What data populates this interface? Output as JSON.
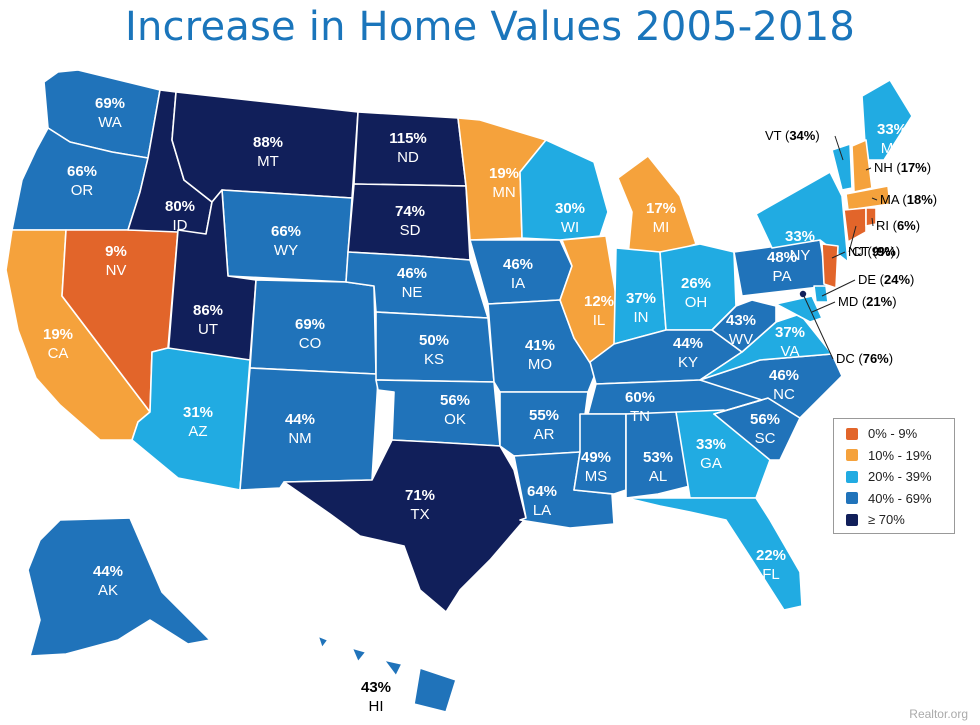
{
  "title": "Increase in Home Values 2005-2018",
  "credit": "Realtor.org",
  "colors": {
    "tier1": "#e2652a",
    "tier2": "#f5a23c",
    "tier3": "#21abe2",
    "tier4": "#2073ba",
    "tier5": "#111f5a",
    "border": "#ffffff"
  },
  "legend": [
    {
      "label": "0% - 9%",
      "tier": "tier1"
    },
    {
      "label": "10% - 19%",
      "tier": "tier2"
    },
    {
      "label": "20% - 39%",
      "tier": "tier3"
    },
    {
      "label": "40% - 69%",
      "tier": "tier4"
    },
    {
      "label": "≥ 70%",
      "tier": "tier5"
    }
  ],
  "states": [
    {
      "abbr": "WA",
      "value": "69%",
      "tier": "tier4"
    },
    {
      "abbr": "OR",
      "value": "66%",
      "tier": "tier4"
    },
    {
      "abbr": "CA",
      "value": "19%",
      "tier": "tier2"
    },
    {
      "abbr": "NV",
      "value": "9%",
      "tier": "tier1"
    },
    {
      "abbr": "ID",
      "value": "80%",
      "tier": "tier5"
    },
    {
      "abbr": "MT",
      "value": "88%",
      "tier": "tier5"
    },
    {
      "abbr": "WY",
      "value": "66%",
      "tier": "tier4"
    },
    {
      "abbr": "UT",
      "value": "86%",
      "tier": "tier5"
    },
    {
      "abbr": "AZ",
      "value": "31%",
      "tier": "tier3"
    },
    {
      "abbr": "CO",
      "value": "69%",
      "tier": "tier4"
    },
    {
      "abbr": "NM",
      "value": "44%",
      "tier": "tier4"
    },
    {
      "abbr": "ND",
      "value": "115%",
      "tier": "tier5"
    },
    {
      "abbr": "SD",
      "value": "74%",
      "tier": "tier5"
    },
    {
      "abbr": "NE",
      "value": "46%",
      "tier": "tier4"
    },
    {
      "abbr": "KS",
      "value": "50%",
      "tier": "tier4"
    },
    {
      "abbr": "OK",
      "value": "56%",
      "tier": "tier4"
    },
    {
      "abbr": "TX",
      "value": "71%",
      "tier": "tier5"
    },
    {
      "abbr": "MN",
      "value": "19%",
      "tier": "tier2"
    },
    {
      "abbr": "IA",
      "value": "46%",
      "tier": "tier4"
    },
    {
      "abbr": "MO",
      "value": "41%",
      "tier": "tier4"
    },
    {
      "abbr": "AR",
      "value": "55%",
      "tier": "tier4"
    },
    {
      "abbr": "LA",
      "value": "64%",
      "tier": "tier4"
    },
    {
      "abbr": "WI",
      "value": "30%",
      "tier": "tier3"
    },
    {
      "abbr": "IL",
      "value": "12%",
      "tier": "tier2"
    },
    {
      "abbr": "MI",
      "value": "17%",
      "tier": "tier2"
    },
    {
      "abbr": "IN",
      "value": "37%",
      "tier": "tier3"
    },
    {
      "abbr": "OH",
      "value": "26%",
      "tier": "tier3"
    },
    {
      "abbr": "KY",
      "value": "44%",
      "tier": "tier4"
    },
    {
      "abbr": "TN",
      "value": "60%",
      "tier": "tier4"
    },
    {
      "abbr": "MS",
      "value": "49%",
      "tier": "tier4"
    },
    {
      "abbr": "AL",
      "value": "53%",
      "tier": "tier4"
    },
    {
      "abbr": "GA",
      "value": "33%",
      "tier": "tier3"
    },
    {
      "abbr": "FL",
      "value": "22%",
      "tier": "tier3"
    },
    {
      "abbr": "SC",
      "value": "56%",
      "tier": "tier4"
    },
    {
      "abbr": "NC",
      "value": "46%",
      "tier": "tier4"
    },
    {
      "abbr": "VA",
      "value": "37%",
      "tier": "tier3"
    },
    {
      "abbr": "WV",
      "value": "43%",
      "tier": "tier4"
    },
    {
      "abbr": "PA",
      "value": "48%",
      "tier": "tier4"
    },
    {
      "abbr": "NY",
      "value": "33%",
      "tier": "tier3"
    },
    {
      "abbr": "ME",
      "value": "33%",
      "tier": "tier3"
    },
    {
      "abbr": "AK",
      "value": "44%",
      "tier": "tier4"
    },
    {
      "abbr": "HI",
      "value": "43%",
      "tier": "tier4"
    }
  ],
  "callouts": [
    {
      "abbr": "VT",
      "value": "34%",
      "tier": "tier3"
    },
    {
      "abbr": "NH",
      "value": "17%",
      "tier": "tier2"
    },
    {
      "abbr": "MA",
      "value": "18%",
      "tier": "tier2"
    },
    {
      "abbr": "RI",
      "value": "6%",
      "tier": "tier1"
    },
    {
      "abbr": "CT",
      "value": "9%",
      "tier": "tier1"
    },
    {
      "abbr": "NJ",
      "value": "9%",
      "tier": "tier1"
    },
    {
      "abbr": "DE",
      "value": "24%",
      "tier": "tier3"
    },
    {
      "abbr": "MD",
      "value": "21%",
      "tier": "tier3"
    },
    {
      "abbr": "DC",
      "value": "76%",
      "tier": "tier5"
    }
  ]
}
